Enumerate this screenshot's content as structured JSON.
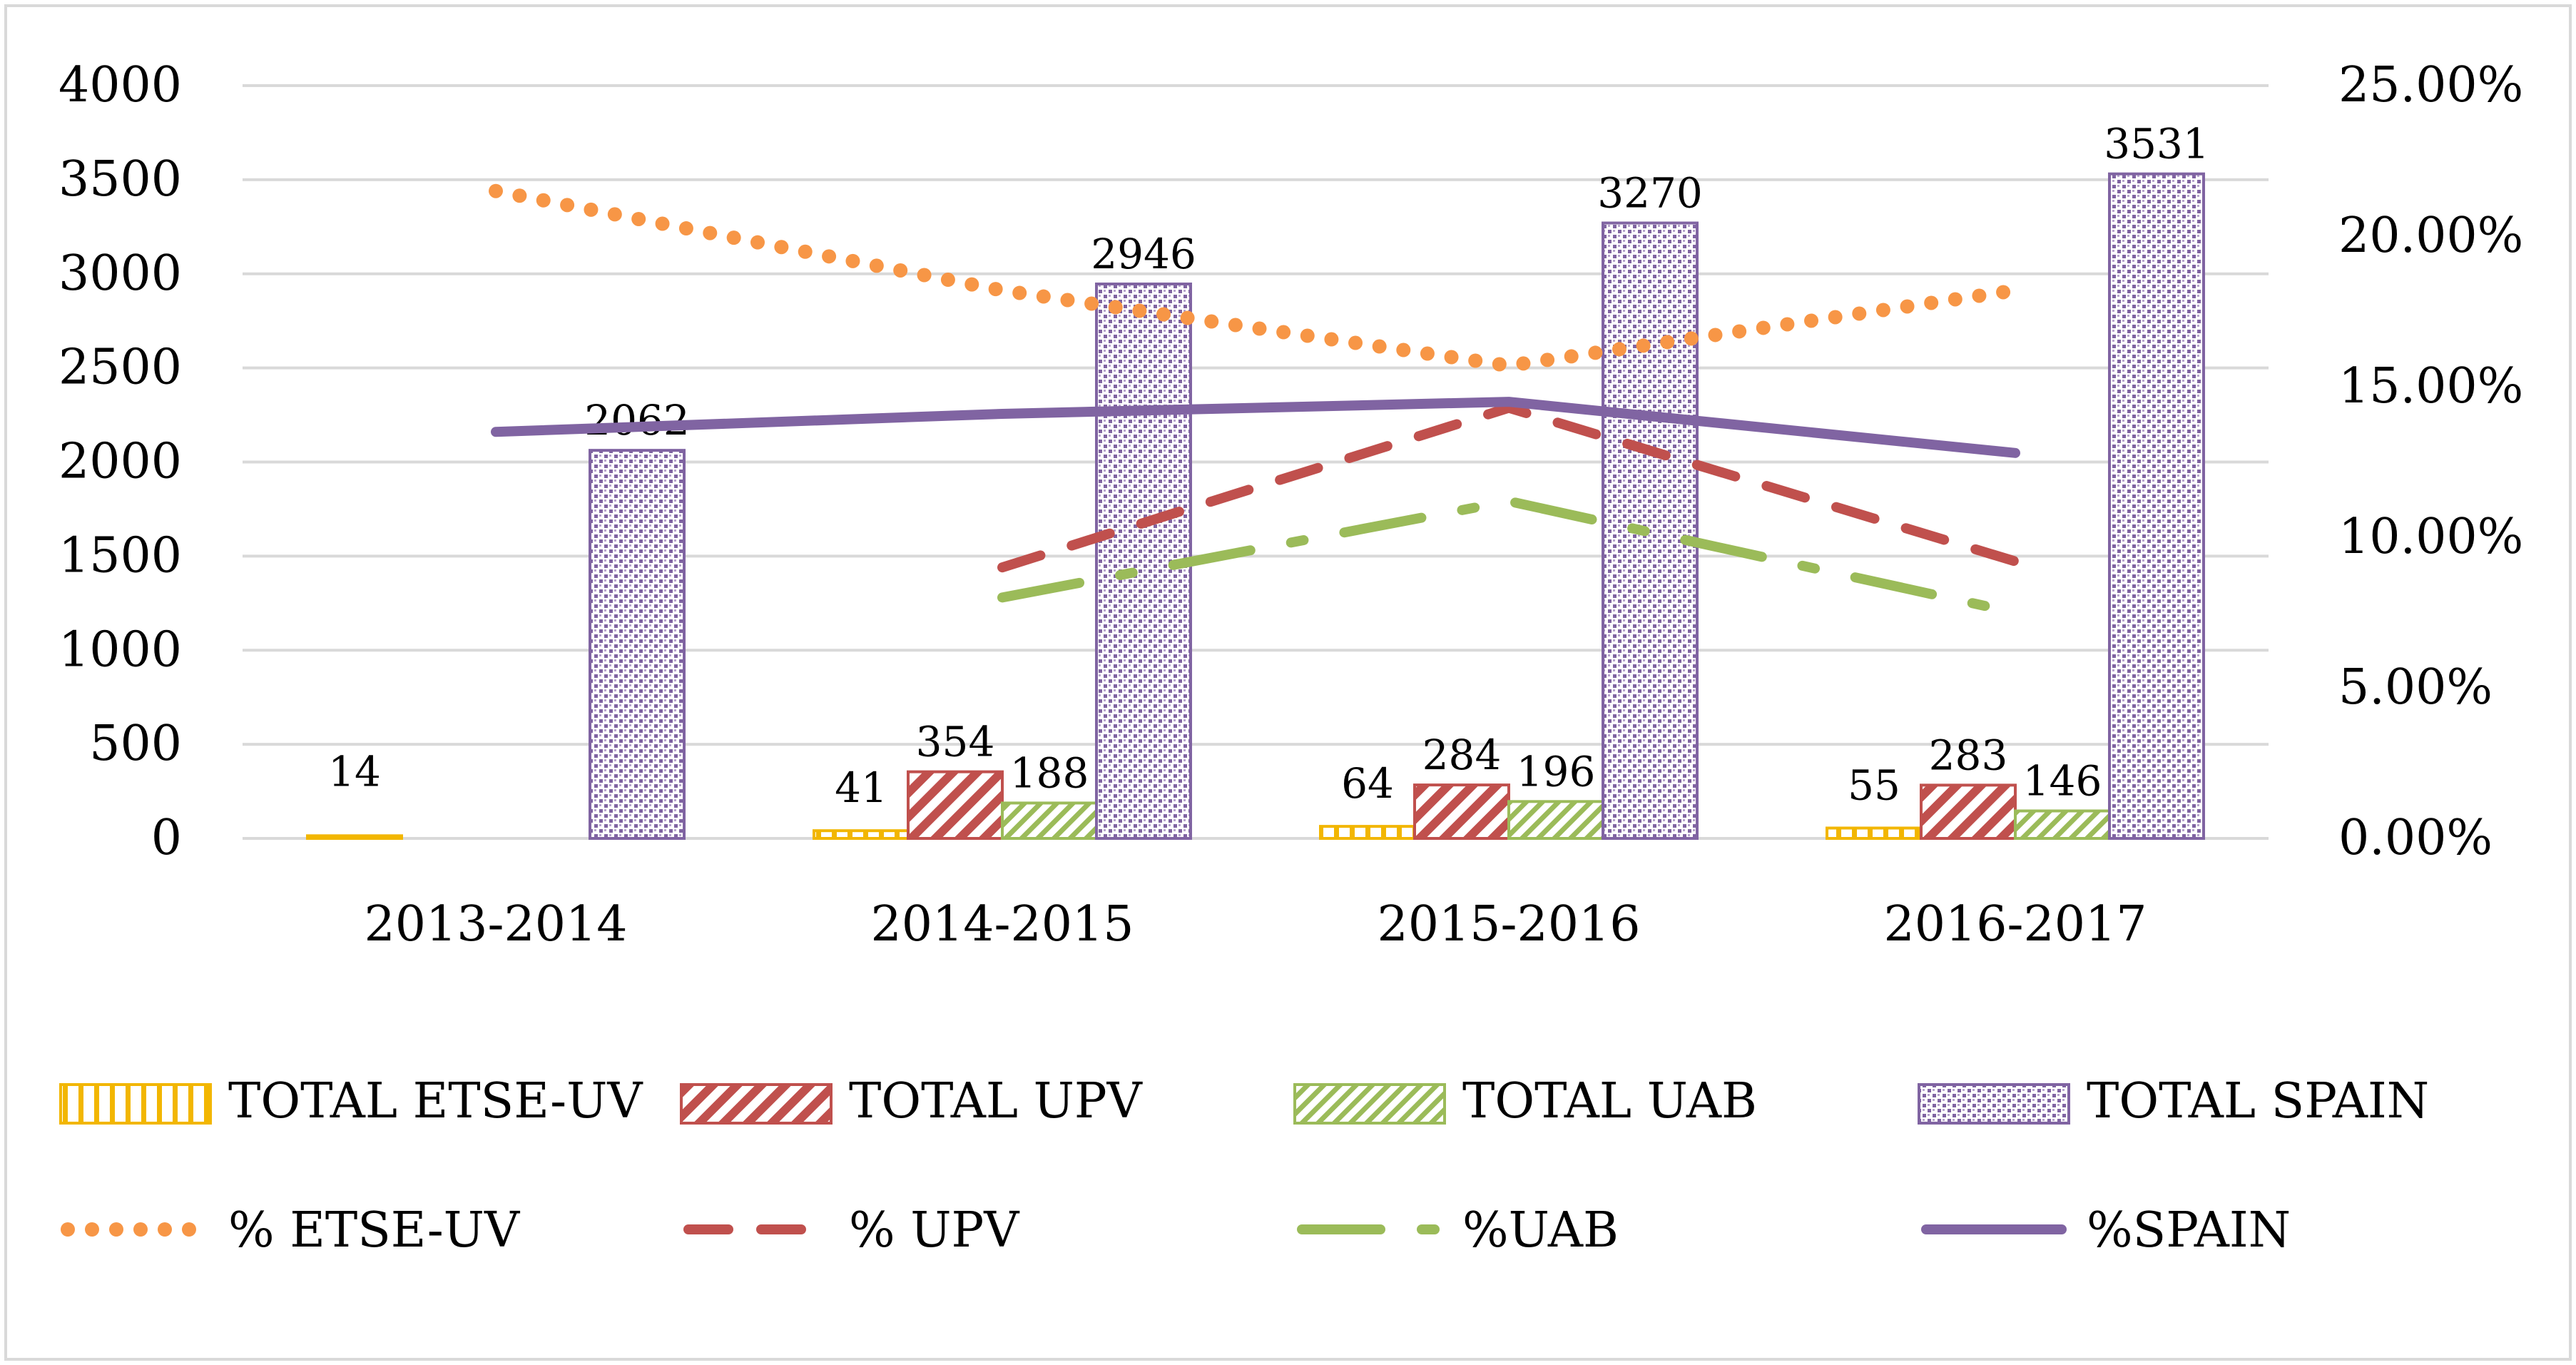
{
  "chart_data": {
    "type": "bar",
    "categories": [
      "2013-2014",
      "2014-2015",
      "2015-2016",
      "2016-2017"
    ],
    "y_left": {
      "min": 0,
      "max": 4000,
      "step": 500,
      "ticks": [
        "0",
        "500",
        "1000",
        "1500",
        "2000",
        "2500",
        "3000",
        "3500",
        "4000"
      ]
    },
    "y_right": {
      "min": 0,
      "max": 25,
      "step": 5,
      "ticks": [
        "0.00%",
        "5.00%",
        "10.00%",
        "15.00%",
        "20.00%",
        "25.00%"
      ]
    },
    "grid": true,
    "legend_position": "bottom",
    "bar_series": [
      {
        "name": "TOTAL ETSE-UV",
        "values": [
          14,
          41,
          64,
          55
        ],
        "labels": [
          "14",
          "41",
          "64",
          "55"
        ],
        "color": "#F2B600",
        "pattern": "vertical"
      },
      {
        "name": "TOTAL UPV",
        "values": [
          null,
          354,
          284,
          283
        ],
        "labels": [
          "",
          "354",
          "284",
          "283"
        ],
        "color": "#C0504D",
        "pattern": "diagonal-wide"
      },
      {
        "name": "TOTAL UAB",
        "values": [
          null,
          188,
          196,
          146
        ],
        "labels": [
          "",
          "188",
          "196",
          "146"
        ],
        "color": "#9BBB59",
        "pattern": "diagonal-light"
      },
      {
        "name": "TOTAL SPAIN",
        "values": [
          2062,
          2946,
          3270,
          3531
        ],
        "labels": [
          "2062",
          "2946",
          "3270",
          "3531"
        ],
        "color": "#8064A2",
        "pattern": "dots"
      }
    ],
    "line_series": [
      {
        "name": "% ETSE-UV",
        "values": [
          21.5,
          18.2,
          15.7,
          18.2
        ],
        "color": "#F79646",
        "dash": "dot",
        "axis": "right"
      },
      {
        "name": "% UPV",
        "values": [
          null,
          9.0,
          14.3,
          9.2
        ],
        "color": "#C0504D",
        "dash": "dash",
        "axis": "right"
      },
      {
        "name": "%UAB",
        "values": [
          null,
          8.0,
          11.2,
          7.5
        ],
        "color": "#9BBB59",
        "dash": "longdash",
        "axis": "right"
      },
      {
        "name": "%SPAIN",
        "values": [
          13.5,
          14.1,
          14.5,
          12.8
        ],
        "color": "#8064A2",
        "dash": "solid",
        "axis": "right"
      }
    ]
  }
}
